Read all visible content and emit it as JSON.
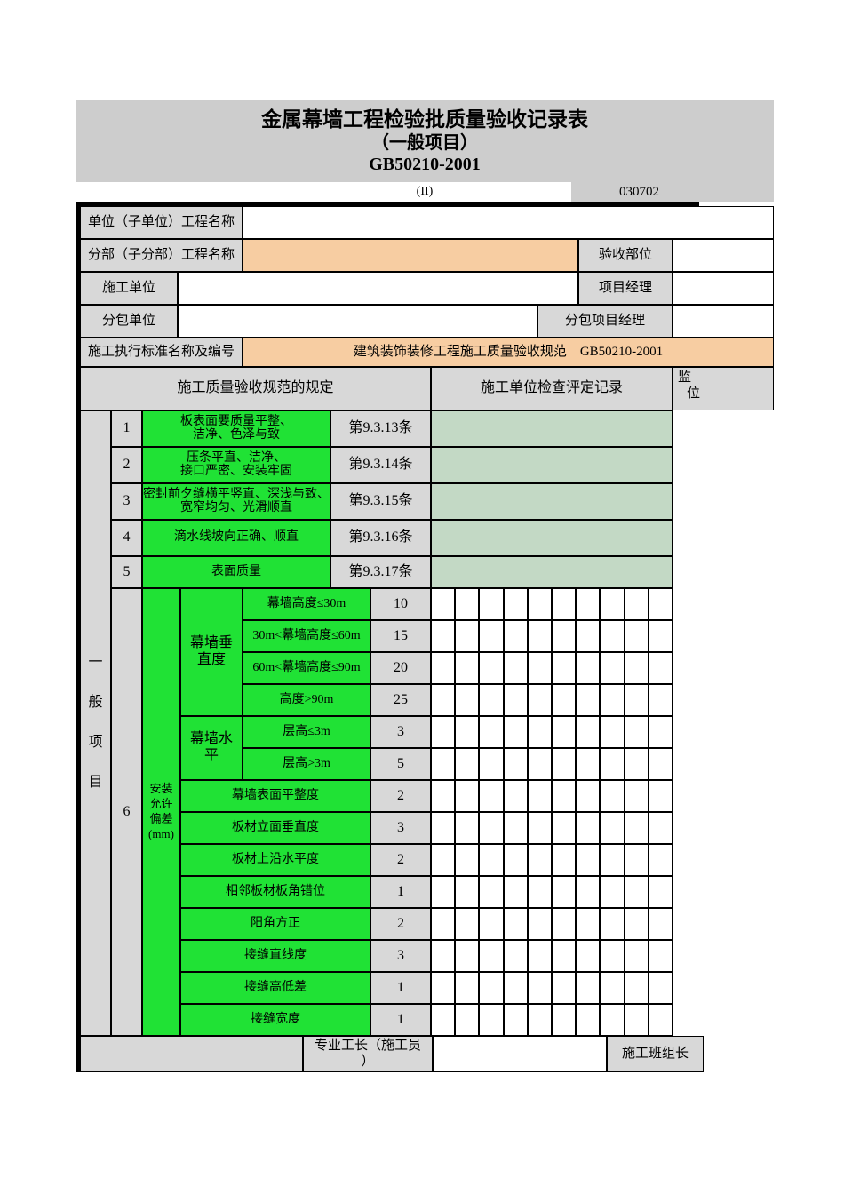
{
  "header": {
    "title_line1": "金属幕墙工程检验批质量验收记录表",
    "title_line2": "（一般项目）",
    "title_line3": "GB50210-2001",
    "paren_label": "(II)",
    "code": "030702"
  },
  "info": {
    "unit_project_label": "单位（子单位）工程名称",
    "unit_project_value": "",
    "subsection_label": "分部（子分部）工程名称",
    "subsection_value": "",
    "acceptance_part_label": "验收部位",
    "acceptance_part_value": "",
    "construction_unit_label": "施工单位",
    "construction_unit_value": "",
    "project_manager_label": "项目经理",
    "project_manager_value": "",
    "subcontractor_label": "分包单位",
    "subcontractor_value": "",
    "sub_project_manager_label": "分包项目经理",
    "sub_project_manager_value": "",
    "standard_label": "施工执行标准名称及编号",
    "standard_value": "建筑装饰装修工程施工质量验收规范　GB50210-2001"
  },
  "table_header": {
    "col_spec": "施工质量验收规范的规定",
    "col_record": "施工单位检查评定记录",
    "col_supervisor_line1": "监",
    "col_supervisor_line2": "位"
  },
  "section_label": [
    "一",
    "般",
    "项",
    "目"
  ],
  "criteria": [
    {
      "no": "1",
      "text": "板表面要质量平整、\n洁净、色泽与致",
      "clause": "第9.3.13条"
    },
    {
      "no": "2",
      "text": "压条平直、洁净、\n接口严密、安装牢固",
      "clause": "第9.3.14条"
    },
    {
      "no": "3",
      "text": "密封前夕缝横平竖直、深浅与致、宽窄均匀、光滑顺直",
      "clause": "第9.3.15条"
    },
    {
      "no": "4",
      "text": "滴水线坡向正确、顺直",
      "clause": "第9.3.16条"
    },
    {
      "no": "5",
      "text": "表面质量",
      "clause": "第9.3.17条"
    }
  ],
  "deviation": {
    "no": "6",
    "label_lines": [
      "安装",
      "允许",
      "偏差",
      "(mm)"
    ],
    "groups": [
      {
        "name": "幕墙垂直度",
        "span": 4
      },
      {
        "name": "幕墙水平",
        "span": 2
      }
    ],
    "rows": [
      {
        "item": "幕墙高度≤30m",
        "value": "10"
      },
      {
        "item": "30m<幕墙高度≤60m",
        "value": "15"
      },
      {
        "item": "60m<幕墙高度≤90m",
        "value": "20"
      },
      {
        "item": "高度>90m",
        "value": "25"
      },
      {
        "item": "层高≤3m",
        "value": "3"
      },
      {
        "item": "层高>3m",
        "value": "5"
      },
      {
        "item": "幕墙表面平整度",
        "value": "2"
      },
      {
        "item": "板材立面垂直度",
        "value": "3"
      },
      {
        "item": "板材上沿水平度",
        "value": "2"
      },
      {
        "item": "相邻板材板角错位",
        "value": "1"
      },
      {
        "item": "阳角方正",
        "value": "2"
      },
      {
        "item": "接缝直线度",
        "value": "3"
      },
      {
        "item": "接缝高低差",
        "value": "1"
      },
      {
        "item": "接缝宽度",
        "value": "1"
      }
    ],
    "measure_grid": {
      "rows": 14,
      "cols": 10
    }
  },
  "footer": {
    "foreman_label": "专业工长（施工员\n）",
    "signature_value": "",
    "crew_leader_label": "施工班组长"
  },
  "colors": {
    "green": "#20e235",
    "light_green": "#c3d9c5",
    "orange": "#f7cda2",
    "cell_gray": "#d8d8d8",
    "title_gray": "#cdcdcd",
    "border": "#000000"
  }
}
